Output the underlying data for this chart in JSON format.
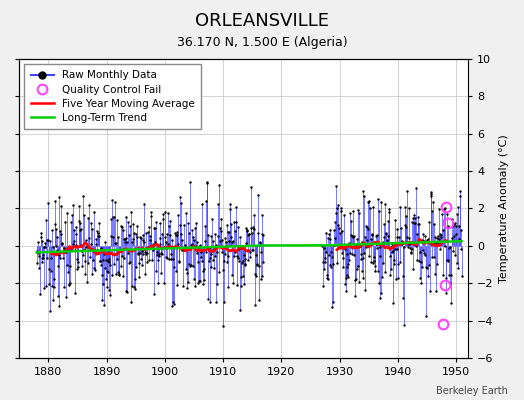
{
  "title": "ORLEANSVILLE",
  "subtitle": "36.170 N, 1.500 E (Algeria)",
  "credit": "Berkeley Earth",
  "ylabel": "Temperature Anomaly (°C)",
  "xlim": [
    1875,
    1952
  ],
  "ylim": [
    -6,
    10
  ],
  "yticks": [
    -6,
    -4,
    -2,
    0,
    2,
    4,
    6,
    8,
    10
  ],
  "xticks": [
    1880,
    1890,
    1900,
    1910,
    1920,
    1930,
    1940,
    1950
  ],
  "bg_color": "#f0f0f0",
  "plot_bg": "#ffffff",
  "grid_color": "#cccccc",
  "line_color": "#4444ff",
  "marker_color": "#000000",
  "ma_color": "#ff0000",
  "trend_color": "#00cc00",
  "qc_color": "#ff44ff",
  "seed": 7
}
